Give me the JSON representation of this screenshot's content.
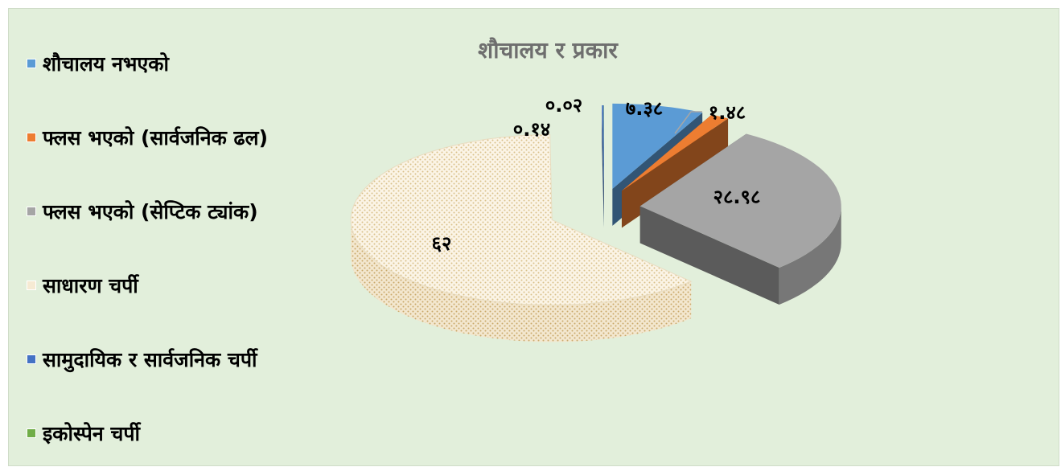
{
  "chart_data": {
    "type": "pie",
    "title": "शौचालय र प्रकार",
    "legend_position": "left",
    "slices": [
      {
        "label": "शौचालय नभएको",
        "value": 7.38,
        "value_label": "७.३८",
        "color": "#5b9bd5"
      },
      {
        "label": "फ्लस भएको (सार्वजनिक ढल)",
        "value": 1.48,
        "value_label": "१.४८",
        "color": "#ed7d31"
      },
      {
        "label": "फ्लस  भएको (सेप्टिक ट्यांक)",
        "value": 28.98,
        "value_label": "२८.९८",
        "color": "#a5a5a5"
      },
      {
        "label": "साधारण चर्पी",
        "value": 62,
        "value_label": "६२",
        "color": "#f6ead3"
      },
      {
        "label": "सामुदायिक र सार्वजनिक चर्पी",
        "value": 0.14,
        "value_label": "०.१४",
        "color": "#4472c4"
      },
      {
        "label": "इकोस्पेन चर्पी",
        "value": 0.02,
        "value_label": "०.०२",
        "color": "#70ad47"
      }
    ]
  }
}
